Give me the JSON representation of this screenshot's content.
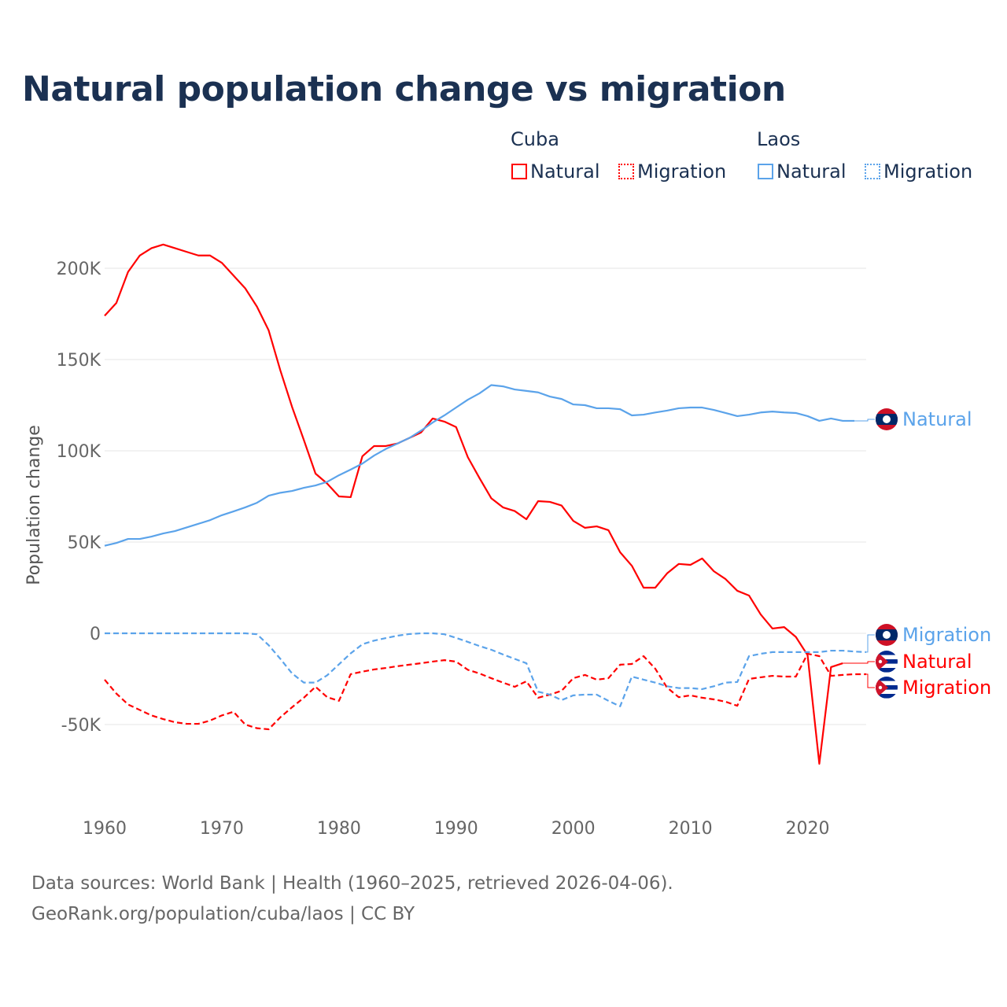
{
  "title": "Natural population change vs migration",
  "legend": {
    "groups": [
      {
        "name": "Cuba",
        "items": [
          {
            "label": "Natural",
            "style": "solid"
          },
          {
            "label": "Migration",
            "style": "dotted"
          }
        ],
        "color": "#ff0000"
      },
      {
        "name": "Laos",
        "items": [
          {
            "label": "Natural",
            "style": "solid"
          },
          {
            "label": "Migration",
            "style": "dotted"
          }
        ],
        "color": "#5ba3ea"
      }
    ]
  },
  "source_line1": "Data sources: World Bank | Health (1960–2025, retrieved 2026-04-06).",
  "source_line2": "GeoRank.org/population/cuba/laos | CC BY",
  "chart_data": {
    "type": "line",
    "title": "Natural population change vs migration",
    "xlabel": "",
    "ylabel": "Population change",
    "xlim": [
      1960,
      2025
    ],
    "ylim": [
      -85000,
      225000
    ],
    "x_ticks": [
      1960,
      1970,
      1980,
      1990,
      2000,
      2010,
      2020
    ],
    "x_tick_labels": [
      "1960",
      "1970",
      "1980",
      "1990",
      "2000",
      "2010",
      "2020"
    ],
    "y_ticks": [
      -50000,
      0,
      50000,
      100000,
      150000,
      200000
    ],
    "y_tick_labels": [
      "-50K",
      "0",
      "50K",
      "100K",
      "150K",
      "200K"
    ],
    "grid": true,
    "start_year": 1960,
    "series": [
      {
        "name": "Cuba Natural",
        "country": "Cuba",
        "end_label": "Natural",
        "color": "#ff0000",
        "dash": "solid",
        "unit": "thousands",
        "values": [
          174,
          181,
          198,
          207,
          211,
          213,
          211,
          209,
          207,
          207,
          203,
          196,
          189,
          179,
          166,
          144,
          124,
          106,
          87.5,
          82,
          75,
          74.6,
          97,
          102.6,
          102.6,
          104,
          107,
          110,
          117.7,
          116,
          113,
          96.5,
          85,
          74,
          69,
          67,
          62.5,
          72.4,
          72,
          70,
          61.6,
          57.8,
          58.6,
          56.5,
          44.4,
          37,
          25,
          25,
          32.8,
          38,
          37.5,
          41,
          34,
          29.7,
          23.3,
          20.7,
          10.3,
          2.6,
          3.4,
          -2,
          -12,
          -71.5,
          -18.5,
          -16.4
        ]
      },
      {
        "name": "Cuba Migration",
        "country": "Cuba",
        "end_label": "Migration",
        "color": "#ff0000",
        "dash": "dashed",
        "unit": "thousands",
        "values": [
          -25.4,
          -33,
          -39,
          -42,
          -45,
          -47,
          -48.7,
          -49.6,
          -49.6,
          -47.8,
          -45,
          -43,
          -50,
          -52,
          -52.6,
          -46,
          -40.5,
          -35.3,
          -29.3,
          -35,
          -37,
          -22.4,
          -21,
          -19.8,
          -19,
          -18,
          -17.2,
          -16.4,
          -15.5,
          -14.7,
          -15.5,
          -20,
          -22,
          -24.6,
          -27,
          -29.3,
          -26.3,
          -35.3,
          -33.6,
          -31.5,
          -24.6,
          -22.8,
          -25.4,
          -24.6,
          -17.2,
          -16.8,
          -12.5,
          -19.4,
          -29.7,
          -35,
          -34,
          -35.3,
          -36.2,
          -37.5,
          -39.7,
          -25,
          -24.1,
          -23.3,
          -23.7,
          -23.7,
          -11.2,
          -12.5,
          -23.3,
          -22.8,
          -22.4,
          -22.4
        ]
      },
      {
        "name": "Laos Natural",
        "country": "Laos",
        "end_label": "Natural",
        "color": "#5ba3ea",
        "dash": "solid",
        "unit": "thousands",
        "values": [
          48,
          49.5,
          51.7,
          51.7,
          53,
          54.7,
          56,
          58,
          60,
          62,
          64.7,
          66.8,
          69,
          71.5,
          75.4,
          77,
          78,
          79.7,
          81,
          83,
          86.6,
          89.7,
          93,
          97.4,
          101,
          104,
          107,
          111,
          115.5,
          119.4,
          123.7,
          128,
          131.5,
          136,
          135.3,
          133.6,
          132.8,
          132,
          129.7,
          128.4,
          125.4,
          125,
          123.3,
          123.3,
          122.8,
          119.4,
          119.8,
          121,
          122,
          123.3,
          123.7,
          123.7,
          122.4,
          120.7,
          119,
          119.8,
          121,
          121.5,
          121,
          120.7,
          119,
          116.4,
          117.7,
          116.4,
          116.4
        ]
      },
      {
        "name": "Laos Migration",
        "country": "Laos",
        "end_label": "Migration",
        "color": "#5ba3ea",
        "dash": "dashed",
        "unit": "thousands",
        "values": [
          0,
          0,
          0,
          0,
          0,
          0,
          0,
          0,
          0,
          0,
          0,
          0,
          0,
          -0.5,
          -6.5,
          -14,
          -22,
          -27,
          -27,
          -23,
          -17,
          -11,
          -6,
          -4,
          -2.6,
          -1.3,
          -0.4,
          0,
          0,
          -0.5,
          -2.5,
          -4.7,
          -7,
          -9,
          -11.6,
          -14,
          -16.4,
          -32,
          -33.6,
          -36.6,
          -34,
          -33.6,
          -33.6,
          -37,
          -40,
          -23.7,
          -25.4,
          -27,
          -29,
          -30,
          -30,
          -30.6,
          -29,
          -27,
          -26.7,
          -12.5,
          -11.2,
          -10.3,
          -10.3,
          -10.3,
          -10.3,
          -10.3,
          -9.5,
          -9.5,
          -10,
          -10.3
        ]
      }
    ]
  }
}
